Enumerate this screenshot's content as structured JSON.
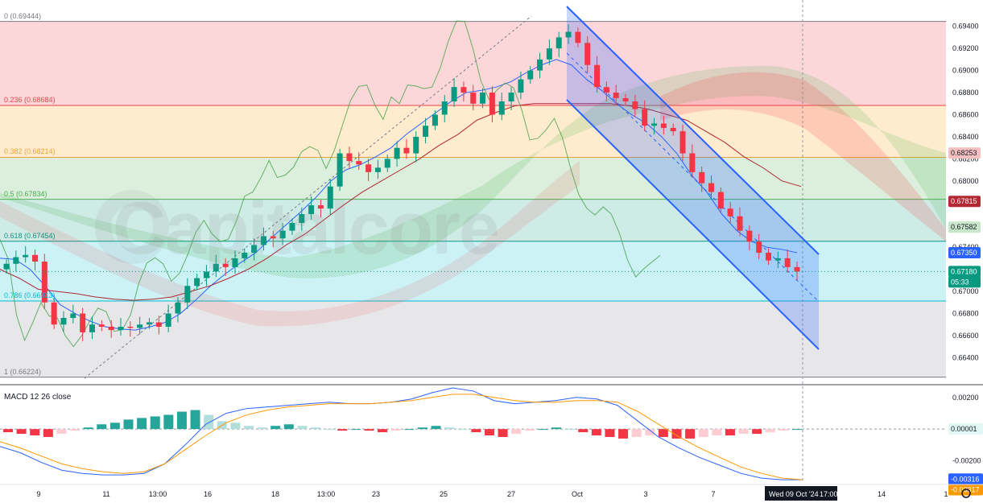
{
  "watermark": "Capitalcore",
  "fib_levels": [
    {
      "ratio": "0",
      "label": "0 (0.69444)",
      "value": 0.69444,
      "color": "#787b86"
    },
    {
      "ratio": "0.236",
      "label": "0.236 (0.68684)",
      "value": 0.68684,
      "color": "#e84545"
    },
    {
      "ratio": "0.382",
      "label": "0.382 (0.68214)",
      "value": 0.68214,
      "color": "#e8a33b"
    },
    {
      "ratio": "0.5",
      "label": "0.5 (0.67834)",
      "value": 0.67834,
      "color": "#4caf50"
    },
    {
      "ratio": "0.618",
      "label": "0.618 (0.67454)",
      "value": 0.67454,
      "color": "#089981"
    },
    {
      "ratio": "0.786",
      "label": "0.786 (0.66913)",
      "value": 0.66913,
      "color": "#00bcd4"
    },
    {
      "ratio": "1",
      "label": "1 (0.66224)",
      "value": 0.66224,
      "color": "#787b86"
    }
  ],
  "macd": {
    "title": "MACD 12 26 close"
  },
  "chart_data": [
    {
      "type": "candlestick",
      "ylim": [
        0.6617,
        0.6958
      ],
      "y_ticks": [
        "0.69400",
        "0.69200",
        "0.69000",
        "0.68800",
        "0.68600",
        "0.68400",
        "0.68200",
        "0.68000",
        "0.67800",
        "0.67600",
        "0.67400",
        "0.67200",
        "0.67000",
        "0.66800",
        "0.66600",
        "0.66400"
      ],
      "y_tick_values": [
        0.694,
        0.692,
        0.69,
        0.688,
        0.686,
        0.684,
        0.682,
        0.68,
        0.678,
        0.676,
        0.674,
        0.672,
        0.67,
        0.668,
        0.666,
        0.664
      ],
      "x_ticks": [
        "9",
        "11",
        "13:00",
        "16",
        "18",
        "13:00",
        "23",
        "25",
        "27",
        "Oct",
        "3",
        "7",
        "Wed 09 Oct '24",
        "17:00",
        "14",
        "1"
      ],
      "price_labels": [
        {
          "text": "0.68253",
          "value": 0.68253,
          "color": "#f5c0c0",
          "text_color": "#131722"
        },
        {
          "text": "0.67815",
          "value": 0.67815,
          "color": "#b22833",
          "text_color": "#ffffff"
        },
        {
          "text": "0.67582",
          "value": 0.67582,
          "color": "#c8e6c9",
          "text_color": "#131722"
        },
        {
          "text": "0.67350",
          "value": 0.6735,
          "color": "#2962ff",
          "text_color": "#ffffff"
        },
        {
          "text": "0.67180",
          "value": 0.6718,
          "color": "#089981",
          "text_color": "#ffffff"
        },
        {
          "text": "05:33",
          "value": 0.67085,
          "color": "#089981",
          "text_color": "#ffffff"
        }
      ],
      "trend_channel": {
        "upper": [
          [
            0.6948,
            0.6733
          ],
          [
            0.6868,
            0.6652
          ]
        ]
      },
      "series": [
        {
          "name": "Price (candles)",
          "values": [
            0.6725,
            0.6731,
            0.6733,
            0.6727,
            0.669,
            0.667,
            0.6676,
            0.668,
            0.6663,
            0.667,
            0.6668,
            0.6665,
            0.6668,
            0.6667,
            0.667,
            0.6672,
            0.6668,
            0.668,
            0.669,
            0.6705,
            0.6712,
            0.6718,
            0.6725,
            0.6722,
            0.673,
            0.6735,
            0.6742,
            0.675,
            0.6748,
            0.6755,
            0.6762,
            0.677,
            0.6778,
            0.6775,
            0.6795,
            0.6825,
            0.6818,
            0.6815,
            0.6808,
            0.6812,
            0.682,
            0.683,
            0.6825,
            0.684,
            0.685,
            0.686,
            0.6872,
            0.6885,
            0.688,
            0.687,
            0.688,
            0.686,
            0.6872,
            0.688,
            0.6892,
            0.69,
            0.691,
            0.692,
            0.693,
            0.6935,
            0.6925,
            0.6905,
            0.6885,
            0.688,
            0.6875,
            0.6872,
            0.6865,
            0.685,
            0.6852,
            0.6848,
            0.6845,
            0.6825,
            0.6808,
            0.6798,
            0.679,
            0.6775,
            0.6768,
            0.6755,
            0.6745,
            0.6735,
            0.6728,
            0.673,
            0.6722,
            0.6718
          ]
        },
        {
          "name": "Tenkan",
          "values": [
            0.673,
            0.6729,
            0.672,
            0.6705,
            0.6688,
            0.668,
            0.6673,
            0.6668,
            0.6666,
            0.6665,
            0.6668,
            0.6672,
            0.668,
            0.6692,
            0.6705,
            0.6716,
            0.6726,
            0.6735,
            0.6748,
            0.676,
            0.6772,
            0.6785,
            0.68,
            0.681,
            0.6815,
            0.6822,
            0.683,
            0.6842,
            0.6852,
            0.6862,
            0.6872,
            0.688,
            0.6882,
            0.6885,
            0.689,
            0.6898,
            0.6905,
            0.691,
            0.6905,
            0.6892,
            0.6882,
            0.687,
            0.686,
            0.6852,
            0.684,
            0.6825,
            0.6805,
            0.679,
            0.677,
            0.6755,
            0.6745,
            0.674,
            0.6738,
            0.6735
          ]
        },
        {
          "name": "Kijun",
          "values": [
            0.672,
            0.6712,
            0.6702,
            0.67,
            0.6698,
            0.6695,
            0.6693,
            0.6692,
            0.6693,
            0.6695,
            0.67,
            0.6705,
            0.6712,
            0.672,
            0.673,
            0.6742,
            0.6752,
            0.6765,
            0.6778,
            0.679,
            0.68,
            0.681,
            0.682,
            0.6832,
            0.6842,
            0.6855,
            0.6862,
            0.6868,
            0.687,
            0.687,
            0.687,
            0.687,
            0.687,
            0.6868,
            0.6865,
            0.686,
            0.6855,
            0.6845,
            0.6835,
            0.6822,
            0.6812,
            0.68,
            0.6795
          ]
        }
      ]
    },
    {
      "type": "macd",
      "title": "MACD 12 26 close",
      "ylim": [
        -0.0034,
        0.0026
      ],
      "y_ticks": [
        "0.00200",
        "-0.00200"
      ],
      "y_tick_values": [
        0.002,
        -0.002
      ],
      "value_labels": [
        {
          "text": "0.00001",
          "value": 1e-05,
          "color": "#e0f7f3",
          "text_color": "#131722"
        },
        {
          "text": "-0.00316",
          "value": -0.00316,
          "color": "#2962ff",
          "text_color": "#ffffff"
        },
        {
          "text": "-0.00317",
          "value": -0.00317,
          "color": "#ff9800",
          "text_color": "#ffffff"
        }
      ],
      "histogram": [
        -0.0002,
        -0.0003,
        -0.0004,
        -0.0005,
        -0.0003,
        -0.0001,
        0.0001,
        0.0003,
        0.0004,
        0.0006,
        0.0007,
        0.0008,
        0.0009,
        0.0011,
        0.0012,
        0.0009,
        0.0005,
        0.0004,
        0.0002,
        0.0001,
        0.0002,
        0.0003,
        0.0002,
        0.0001,
        0,
        -0.0001,
        0,
        -0.0001,
        -0.0002,
        -0.0001,
        0,
        0.0001,
        0.0002,
        0.0001,
        0,
        -0.0002,
        -0.0004,
        -0.0005,
        -0.0003,
        -0.0001,
        0,
        0.0001,
        0,
        -0.0002,
        -0.0004,
        -0.0005,
        -0.0006,
        -0.0005,
        -0.0004,
        -0.0005,
        -0.0006,
        -0.0006,
        -0.0005,
        -0.0004,
        -0.0004,
        -0.0003,
        -0.0003,
        -0.0002,
        -0.0001,
        0
      ],
      "series": [
        {
          "name": "MACD",
          "color": "#2962ff",
          "values": [
            -0.0011,
            -0.0015,
            -0.0021,
            -0.0026,
            -0.0028,
            -0.0029,
            -0.0029,
            -0.0028,
            -0.0022,
            -0.001,
            0.0003,
            0.001,
            0.0013,
            0.0014,
            0.0015,
            0.0016,
            0.0017,
            0.0016,
            0.0016,
            0.0017,
            0.0019,
            0.0023,
            0.0026,
            0.0024,
            0.0018,
            0.0016,
            0.0017,
            0.0018,
            0.002,
            0.0019,
            0.0015,
            0.0005,
            -0.0005,
            -0.0012,
            -0.0018,
            -0.0023,
            -0.0028,
            -0.0031,
            -0.0032,
            -0.0032
          ]
        },
        {
          "name": "Signal",
          "color": "#ff9800",
          "values": [
            -0.0008,
            -0.0012,
            -0.0017,
            -0.0022,
            -0.0025,
            -0.0027,
            -0.0028,
            -0.0027,
            -0.0022,
            -0.0013,
            -0.0004,
            0.0004,
            0.0009,
            0.0012,
            0.0014,
            0.0015,
            0.0016,
            0.0016,
            0.0016,
            0.0017,
            0.0018,
            0.002,
            0.0022,
            0.0022,
            0.002,
            0.0018,
            0.0017,
            0.0017,
            0.0018,
            0.0018,
            0.0017,
            0.0011,
            0.0003,
            -0.0005,
            -0.0012,
            -0.0018,
            -0.0024,
            -0.0028,
            -0.0031,
            -0.0032
          ]
        }
      ]
    }
  ]
}
